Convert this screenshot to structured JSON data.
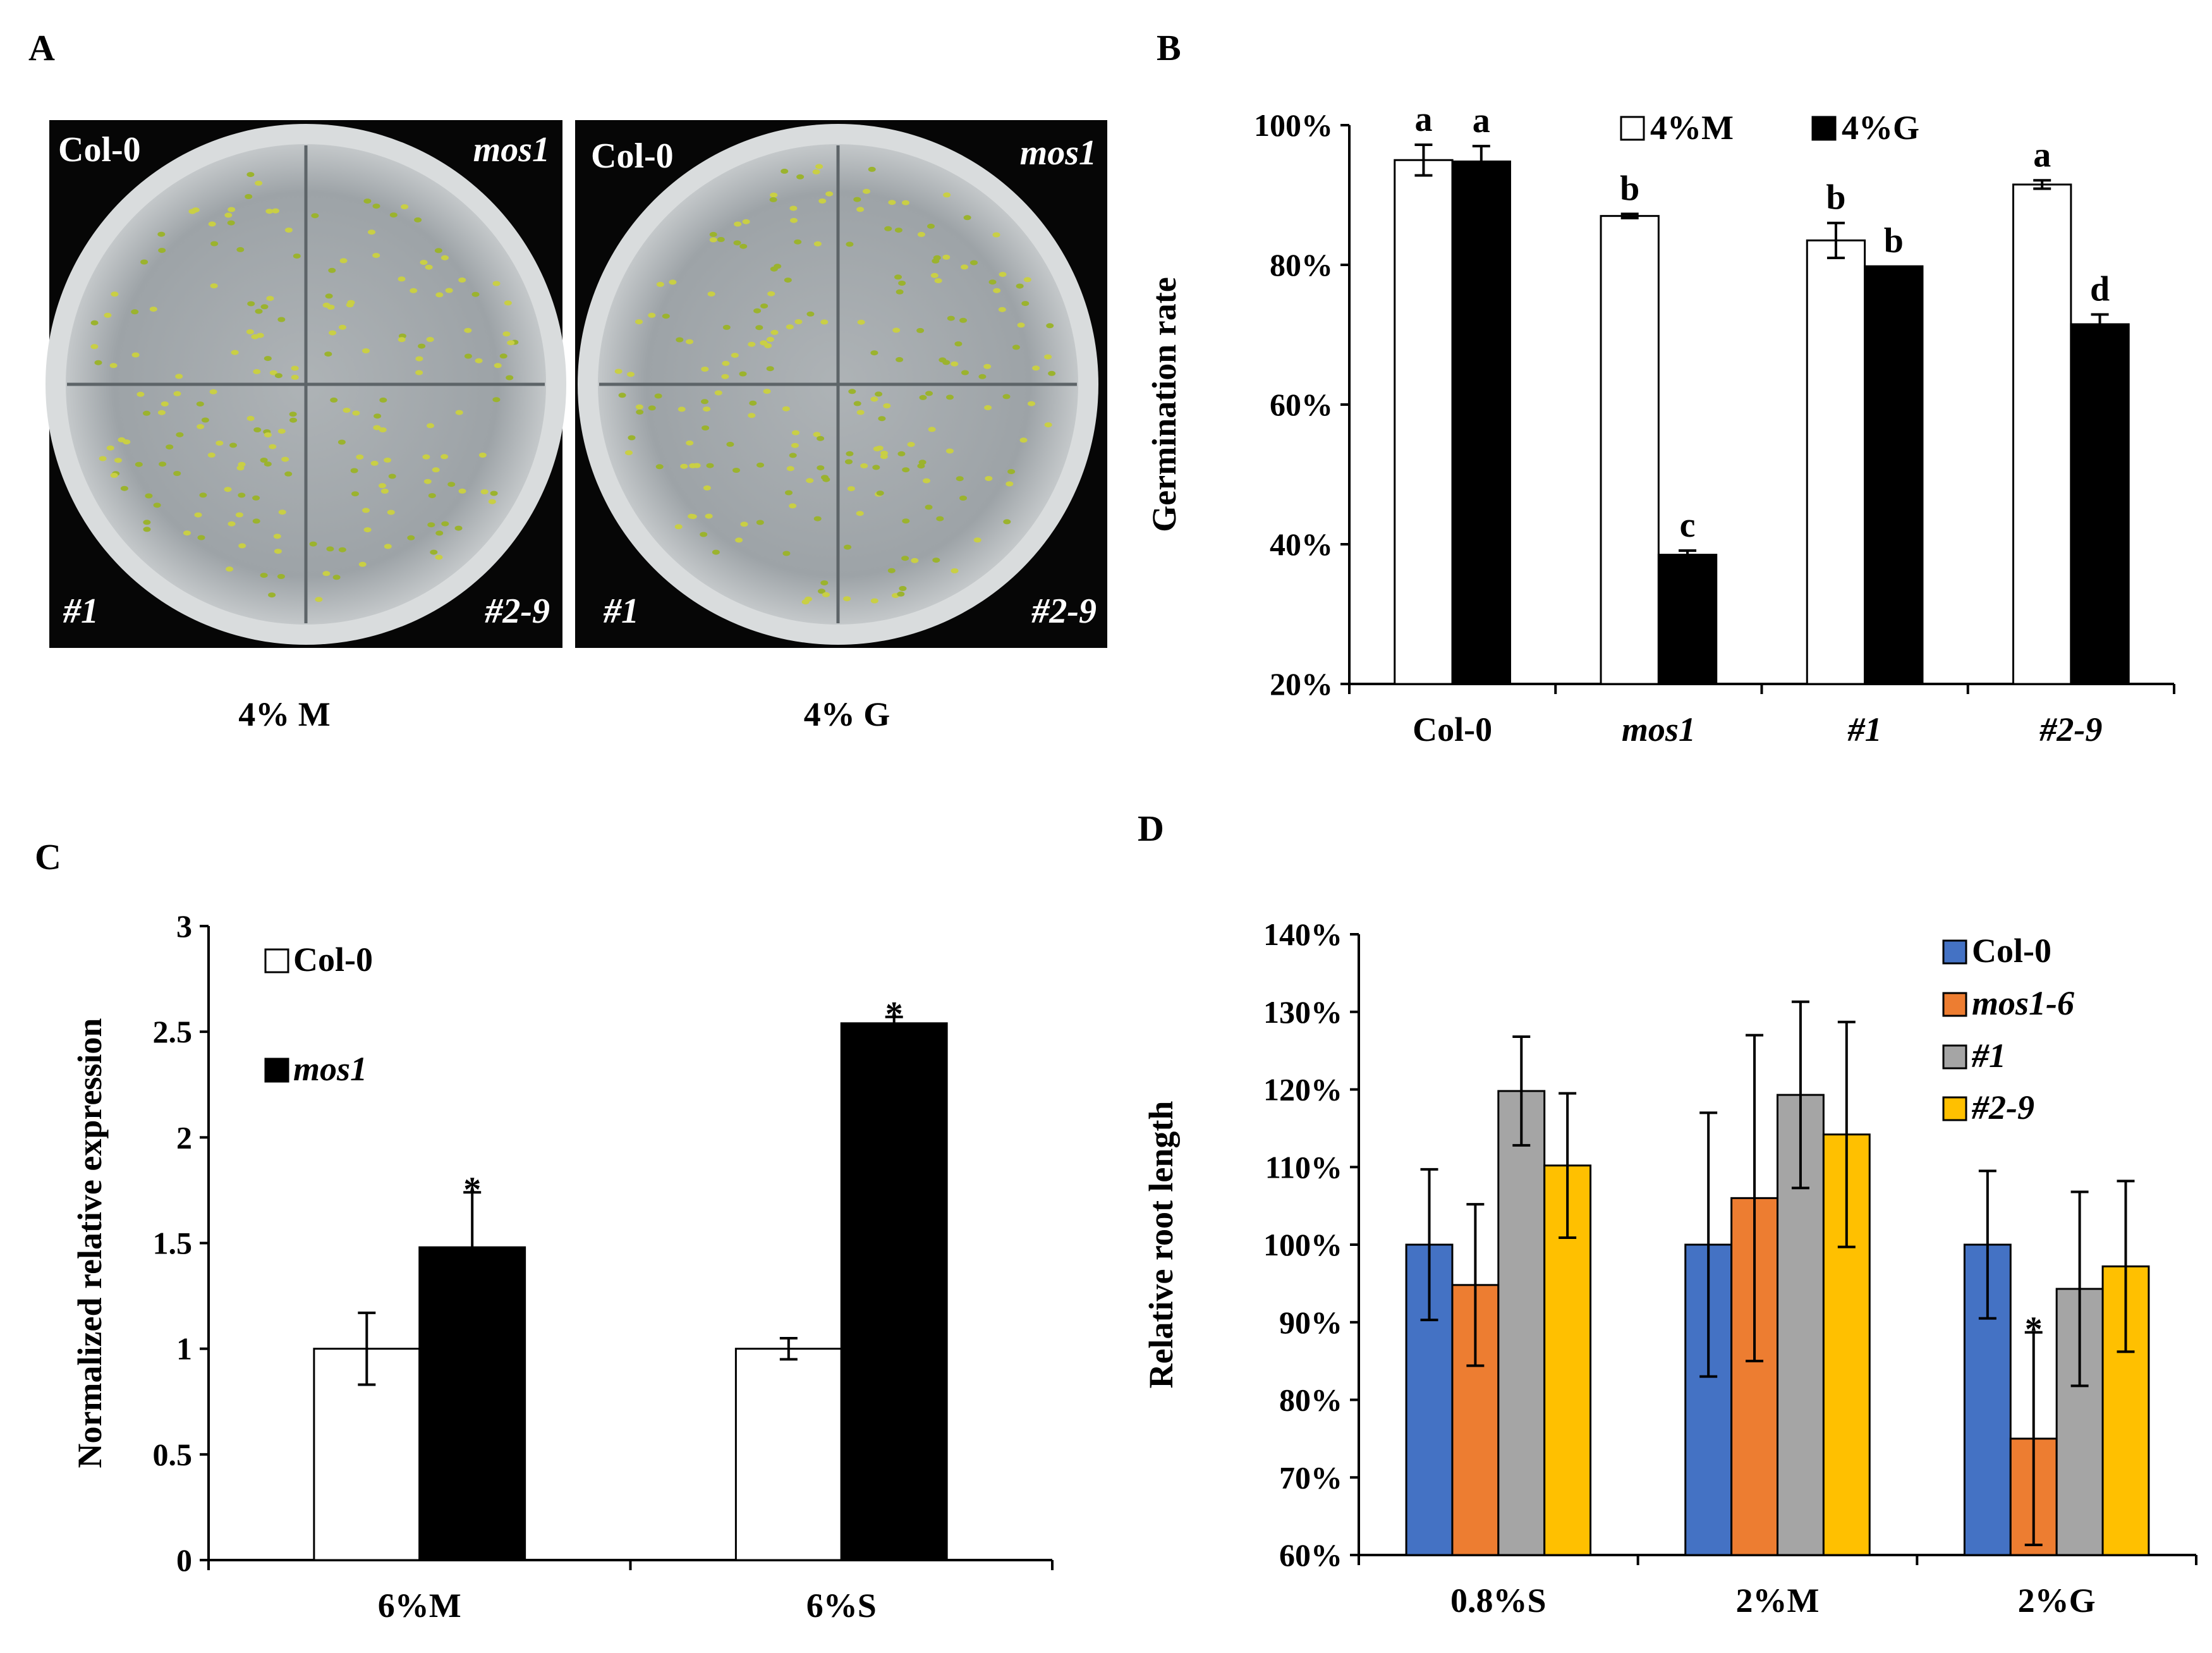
{
  "panels": {
    "A": {
      "letter": "A",
      "plates": [
        {
          "caption": "4% M",
          "labels": {
            "tl": "Col-0",
            "tr": "mos1",
            "bl": "#1",
            "br": "#2-9"
          }
        },
        {
          "caption": "4% G",
          "labels": {
            "tl": "Col-0",
            "tr": "mos1",
            "bl": "#1",
            "br": "#2-9"
          }
        }
      ]
    },
    "B": {
      "letter": "B"
    },
    "C": {
      "letter": "C"
    },
    "D": {
      "letter": "D"
    }
  },
  "chart_data": [
    {
      "panel": "B",
      "type": "bar",
      "title": "",
      "xlabel": "",
      "ylabel": "Germination rate",
      "ylim": [
        20,
        100
      ],
      "yticks": [
        "20%",
        "40%",
        "60%",
        "80%",
        "100%"
      ],
      "categories": [
        "Col-0",
        "mos1",
        "#1",
        "#2-9"
      ],
      "category_italic": [
        false,
        true,
        true,
        true
      ],
      "legend_position": "top-center",
      "series": [
        {
          "name": "4%M",
          "color": "#ffffff",
          "values": [
            95,
            87,
            83.5,
            91.5
          ],
          "errors": [
            2.2,
            0.3,
            2.5,
            0.6
          ],
          "letters": [
            "a",
            "b",
            "b",
            "a"
          ]
        },
        {
          "name": "4%G",
          "color": "#000000",
          "values": [
            94.8,
            38.5,
            79.8,
            71.5
          ],
          "errors": [
            2.2,
            0.6,
            0,
            1.4
          ],
          "letters": [
            "a",
            "c",
            "b",
            "d"
          ]
        }
      ]
    },
    {
      "panel": "C",
      "type": "bar",
      "title": "",
      "xlabel": "",
      "ylabel": "Normalized relative expression",
      "ylim": [
        0,
        3
      ],
      "yticks": [
        "0",
        "0.5",
        "1",
        "1.5",
        "2",
        "2.5",
        "3"
      ],
      "categories": [
        "6%M",
        "6%S"
      ],
      "legend_position": "top-left",
      "series": [
        {
          "name": "Col-0",
          "italic": false,
          "color": "#ffffff",
          "values": [
            1.0,
            1.0
          ],
          "errors": [
            0.17,
            0.05
          ],
          "marks": [
            "",
            ""
          ]
        },
        {
          "name": "mos1",
          "italic": true,
          "color": "#000000",
          "values": [
            1.48,
            2.54
          ],
          "errors": [
            0.26,
            0.03
          ],
          "marks": [
            "*",
            "*"
          ]
        }
      ]
    },
    {
      "panel": "D",
      "type": "bar",
      "title": "",
      "xlabel": "",
      "ylabel": "Relative root length",
      "ylim": [
        60,
        140
      ],
      "yticks": [
        "60%",
        "70%",
        "80%",
        "90%",
        "100%",
        "110%",
        "120%",
        "130%",
        "140%"
      ],
      "categories": [
        "0.8%S",
        "2%M",
        "2%G"
      ],
      "legend_position": "top-right",
      "series": [
        {
          "name": "Col-0",
          "italic": false,
          "color": "#4472c4",
          "values": [
            100,
            100,
            100
          ],
          "errors": [
            9.7,
            17,
            9.5
          ],
          "marks": [
            "",
            "",
            ""
          ]
        },
        {
          "name": "mos1-6",
          "italic": true,
          "color": "#ed7d31",
          "values": [
            94.8,
            106,
            75
          ],
          "errors": [
            10.4,
            21,
            13.7
          ],
          "marks": [
            "",
            "",
            "*"
          ]
        },
        {
          "name": "#1",
          "italic": true,
          "color": "#a5a5a5",
          "values": [
            119.8,
            119.3,
            94.3
          ],
          "errors": [
            7,
            12,
            12.5
          ],
          "marks": [
            "",
            "",
            ""
          ]
        },
        {
          "name": "#2-9",
          "italic": true,
          "color": "#ffc000",
          "values": [
            110.2,
            114.2,
            97.2
          ],
          "errors": [
            9.3,
            14.5,
            11
          ],
          "marks": [
            "",
            "",
            ""
          ]
        }
      ]
    }
  ]
}
